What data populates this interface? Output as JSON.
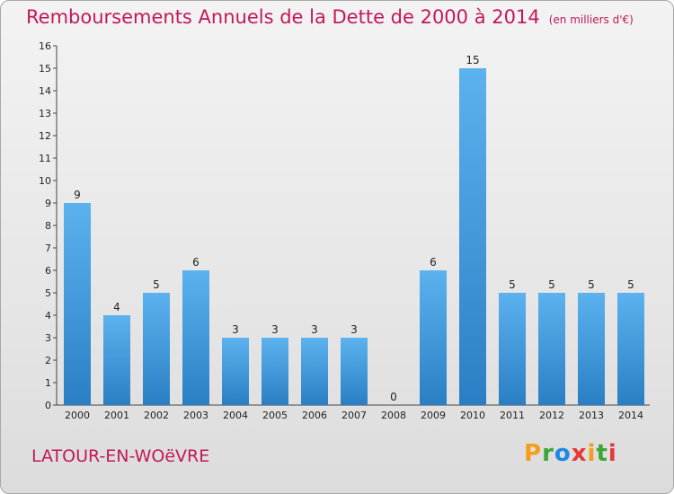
{
  "title": "Remboursements Annuels de la Dette de 2000 à 2014",
  "unit": "(en milliers d'€)",
  "commune": "LATOUR-EN-WOëVRE",
  "logo": {
    "letters": [
      "P",
      "r",
      "o",
      "x",
      "i",
      "t",
      "i"
    ],
    "colors": [
      "#f59c1a",
      "#3fa535",
      "#1e88e5",
      "#e53935",
      "#f59c1a",
      "#3fa535",
      "#e53935"
    ]
  },
  "colors": {
    "bar_light": "#5cb2ee",
    "bar_dark": "#2a7fc4",
    "title": "#c2185b"
  },
  "chart_data": {
    "type": "bar",
    "categories": [
      "2000",
      "2001",
      "2002",
      "2003",
      "2004",
      "2005",
      "2006",
      "2007",
      "2008",
      "2009",
      "2010",
      "2011",
      "2012",
      "2013",
      "2014"
    ],
    "values": [
      9,
      4,
      5,
      6,
      3,
      3,
      3,
      3,
      0,
      6,
      15,
      5,
      5,
      5,
      5
    ],
    "xlabel": "",
    "ylabel": "",
    "ylim": [
      0,
      16
    ],
    "yticks": [
      0,
      1,
      2,
      3,
      4,
      5,
      6,
      7,
      8,
      9,
      10,
      11,
      12,
      13,
      14,
      15,
      16
    ],
    "grid": false,
    "legend": "none"
  }
}
